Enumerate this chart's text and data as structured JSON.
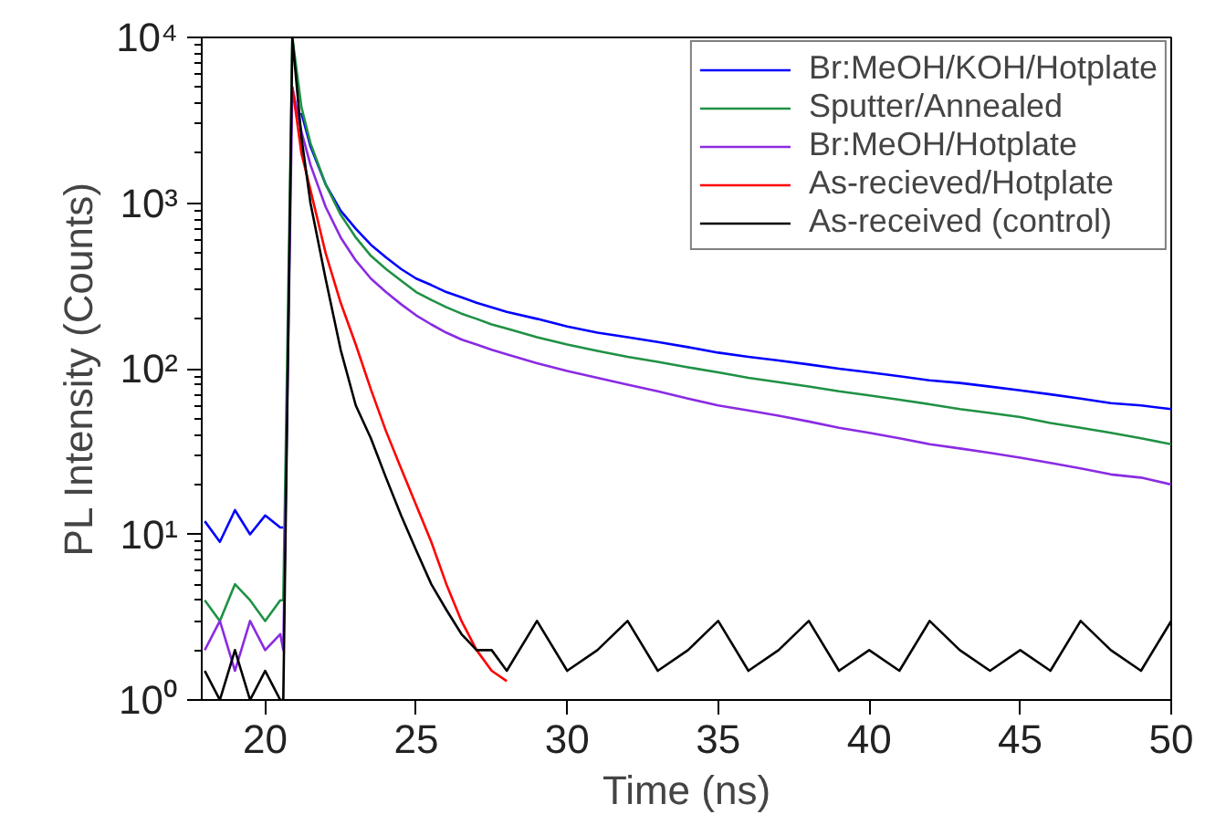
{
  "chart_data": {
    "type": "line",
    "xlabel": "Time (ns)",
    "ylabel": "PL Intensity (Counts)",
    "log": "y",
    "grid": false,
    "legend": "top right",
    "marker": "none",
    "line_style": "solid",
    "xlim": [
      17.9,
      50
    ],
    "xticks": [
      20,
      25,
      30,
      35,
      40,
      45,
      50
    ],
    "ylim": [
      1,
      10000
    ],
    "yticks": [
      {
        "value": 1,
        "label": "10⁰"
      },
      {
        "value": 10,
        "label": "10¹"
      },
      {
        "value": 100,
        "label": "10²"
      },
      {
        "value": 1000,
        "label": "10³"
      },
      {
        "value": 10000,
        "label": "10⁴"
      }
    ],
    "x": [
      18,
      18.5,
      19,
      19.5,
      20,
      20.5,
      20.6,
      20.9,
      21.2,
      21.5,
      22,
      22.5,
      23,
      23.5,
      24,
      24.5,
      25,
      25.5,
      26,
      26.5,
      27,
      27.5,
      28,
      29,
      30,
      31,
      32,
      33,
      34,
      35,
      36,
      37,
      38,
      39,
      40,
      41,
      42,
      43,
      44,
      45,
      46,
      47,
      48,
      49,
      50
    ],
    "series": [
      {
        "name": "Br:MeOH/KOH/Hotplate",
        "color": "#0000ff",
        "values": [
          12,
          9,
          14,
          10,
          13,
          11,
          11,
          null,
          3500,
          2200,
          1300,
          900,
          700,
          560,
          470,
          400,
          350,
          320,
          290,
          270,
          250,
          235,
          220,
          200,
          180,
          165,
          155,
          145,
          135,
          125,
          118,
          112,
          106,
          100,
          95,
          90,
          85,
          82,
          78,
          74,
          70,
          66,
          62,
          60,
          57
        ]
      },
      {
        "name": "Sputter/Annealed",
        "color": "#1f9144",
        "values": [
          4,
          3,
          5,
          4,
          3,
          4,
          4,
          10000,
          3800,
          2300,
          1300,
          850,
          620,
          480,
          400,
          340,
          290,
          260,
          235,
          215,
          200,
          185,
          175,
          155,
          140,
          128,
          118,
          110,
          102,
          95,
          88,
          83,
          78,
          73,
          69,
          65,
          61,
          57,
          54,
          51,
          47,
          44,
          41,
          38,
          35
        ]
      },
      {
        "name": "Br:MeOH/Hotplate",
        "color": "#8a2be2",
        "values": [
          2,
          3,
          1.5,
          3,
          2,
          2.5,
          2,
          5000,
          2700,
          1700,
          950,
          620,
          450,
          350,
          290,
          245,
          210,
          185,
          165,
          150,
          140,
          130,
          122,
          108,
          97,
          88,
          80,
          73,
          66,
          60,
          56,
          52,
          48,
          44,
          41,
          38,
          35,
          33,
          31,
          29,
          27,
          25,
          23,
          22,
          20
        ]
      },
      {
        "name": "As-recieved/Hotplate",
        "color": "#ff0000",
        "values": [
          null,
          null,
          null,
          null,
          null,
          null,
          null,
          5000,
          2000,
          1200,
          500,
          250,
          140,
          75,
          42,
          25,
          15,
          9,
          5,
          3,
          2,
          1.5,
          1.3,
          null,
          null,
          null,
          null,
          null,
          null,
          null,
          null,
          null,
          null,
          null,
          null,
          null,
          null,
          null,
          null,
          null,
          null,
          null,
          null,
          null,
          null
        ]
      },
      {
        "name": "As-received (control)",
        "color": "#000000",
        "values": [
          1.5,
          1,
          2,
          1,
          1.5,
          1,
          1,
          10000,
          2500,
          1000,
          350,
          130,
          60,
          38,
          22,
          13,
          8,
          5,
          3.5,
          2.5,
          2,
          2,
          1.5,
          3,
          1.5,
          2,
          3,
          1.5,
          2,
          3,
          1.5,
          2,
          3,
          1.5,
          2,
          1.5,
          3,
          2,
          1.5,
          2,
          1.5,
          3,
          2,
          1.5,
          3
        ]
      }
    ]
  }
}
